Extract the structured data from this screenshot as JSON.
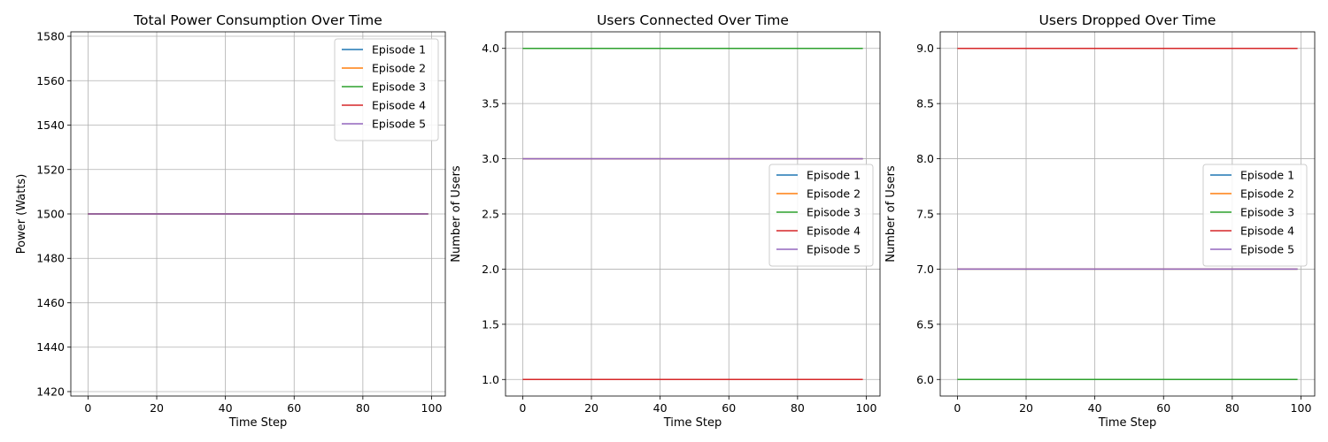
{
  "chart_data": [
    {
      "type": "line",
      "title": "Total Power Consumption Over Time",
      "xlabel": "Time Step",
      "ylabel": "Power (Watts)",
      "xlim": [
        -5,
        104
      ],
      "ylim": [
        1418,
        1582
      ],
      "xticks": [
        0,
        20,
        40,
        60,
        80,
        100
      ],
      "xtick_labels": [
        "0",
        "20",
        "40",
        "60",
        "80",
        "100"
      ],
      "yticks": [
        1420,
        1440,
        1460,
        1480,
        1500,
        1520,
        1540,
        1560,
        1580
      ],
      "ytick_labels": [
        "1420",
        "1440",
        "1460",
        "1480",
        "1500",
        "1520",
        "1540",
        "1560",
        "1580"
      ],
      "grid": true,
      "legend": "upper-right",
      "x_range": [
        0,
        99
      ],
      "series": [
        {
          "name": "Episode 1",
          "color": "#1f77b4",
          "value": 1500
        },
        {
          "name": "Episode 2",
          "color": "#ff7f0e",
          "value": 1500
        },
        {
          "name": "Episode 3",
          "color": "#2ca02c",
          "value": 1500
        },
        {
          "name": "Episode 4",
          "color": "#d62728",
          "value": 1500
        },
        {
          "name": "Episode 5",
          "color": "#9467bd",
          "value": 1500
        }
      ]
    },
    {
      "type": "line",
      "title": "Users Connected Over Time",
      "xlabel": "Time Step",
      "ylabel": "Number of Users",
      "xlim": [
        -5,
        104
      ],
      "ylim": [
        0.85,
        4.15
      ],
      "xticks": [
        0,
        20,
        40,
        60,
        80,
        100
      ],
      "xtick_labels": [
        "0",
        "20",
        "40",
        "60",
        "80",
        "100"
      ],
      "yticks": [
        1.0,
        1.5,
        2.0,
        2.5,
        3.0,
        3.5,
        4.0
      ],
      "ytick_labels": [
        "1.0",
        "1.5",
        "2.0",
        "2.5",
        "3.0",
        "3.5",
        "4.0"
      ],
      "grid": true,
      "legend": "center-right",
      "x_range": [
        0,
        99
      ],
      "series": [
        {
          "name": "Episode 1",
          "color": "#1f77b4",
          "value": 3
        },
        {
          "name": "Episode 2",
          "color": "#ff7f0e",
          "value": 3
        },
        {
          "name": "Episode 3",
          "color": "#2ca02c",
          "value": 4
        },
        {
          "name": "Episode 4",
          "color": "#d62728",
          "value": 1
        },
        {
          "name": "Episode 5",
          "color": "#9467bd",
          "value": 3
        }
      ]
    },
    {
      "type": "line",
      "title": "Users Dropped Over Time",
      "xlabel": "Time Step",
      "ylabel": "Number of Users",
      "xlim": [
        -5,
        104
      ],
      "ylim": [
        5.85,
        9.15
      ],
      "xticks": [
        0,
        20,
        40,
        60,
        80,
        100
      ],
      "xtick_labels": [
        "0",
        "20",
        "40",
        "60",
        "80",
        "100"
      ],
      "yticks": [
        6.0,
        6.5,
        7.0,
        7.5,
        8.0,
        8.5,
        9.0
      ],
      "ytick_labels": [
        "6.0",
        "6.5",
        "7.0",
        "7.5",
        "8.0",
        "8.5",
        "9.0"
      ],
      "grid": true,
      "legend": "center-right",
      "x_range": [
        0,
        99
      ],
      "series": [
        {
          "name": "Episode 1",
          "color": "#1f77b4",
          "value": 7
        },
        {
          "name": "Episode 2",
          "color": "#ff7f0e",
          "value": 7
        },
        {
          "name": "Episode 3",
          "color": "#2ca02c",
          "value": 6
        },
        {
          "name": "Episode 4",
          "color": "#d62728",
          "value": 9
        },
        {
          "name": "Episode 5",
          "color": "#9467bd",
          "value": 7
        }
      ]
    }
  ]
}
